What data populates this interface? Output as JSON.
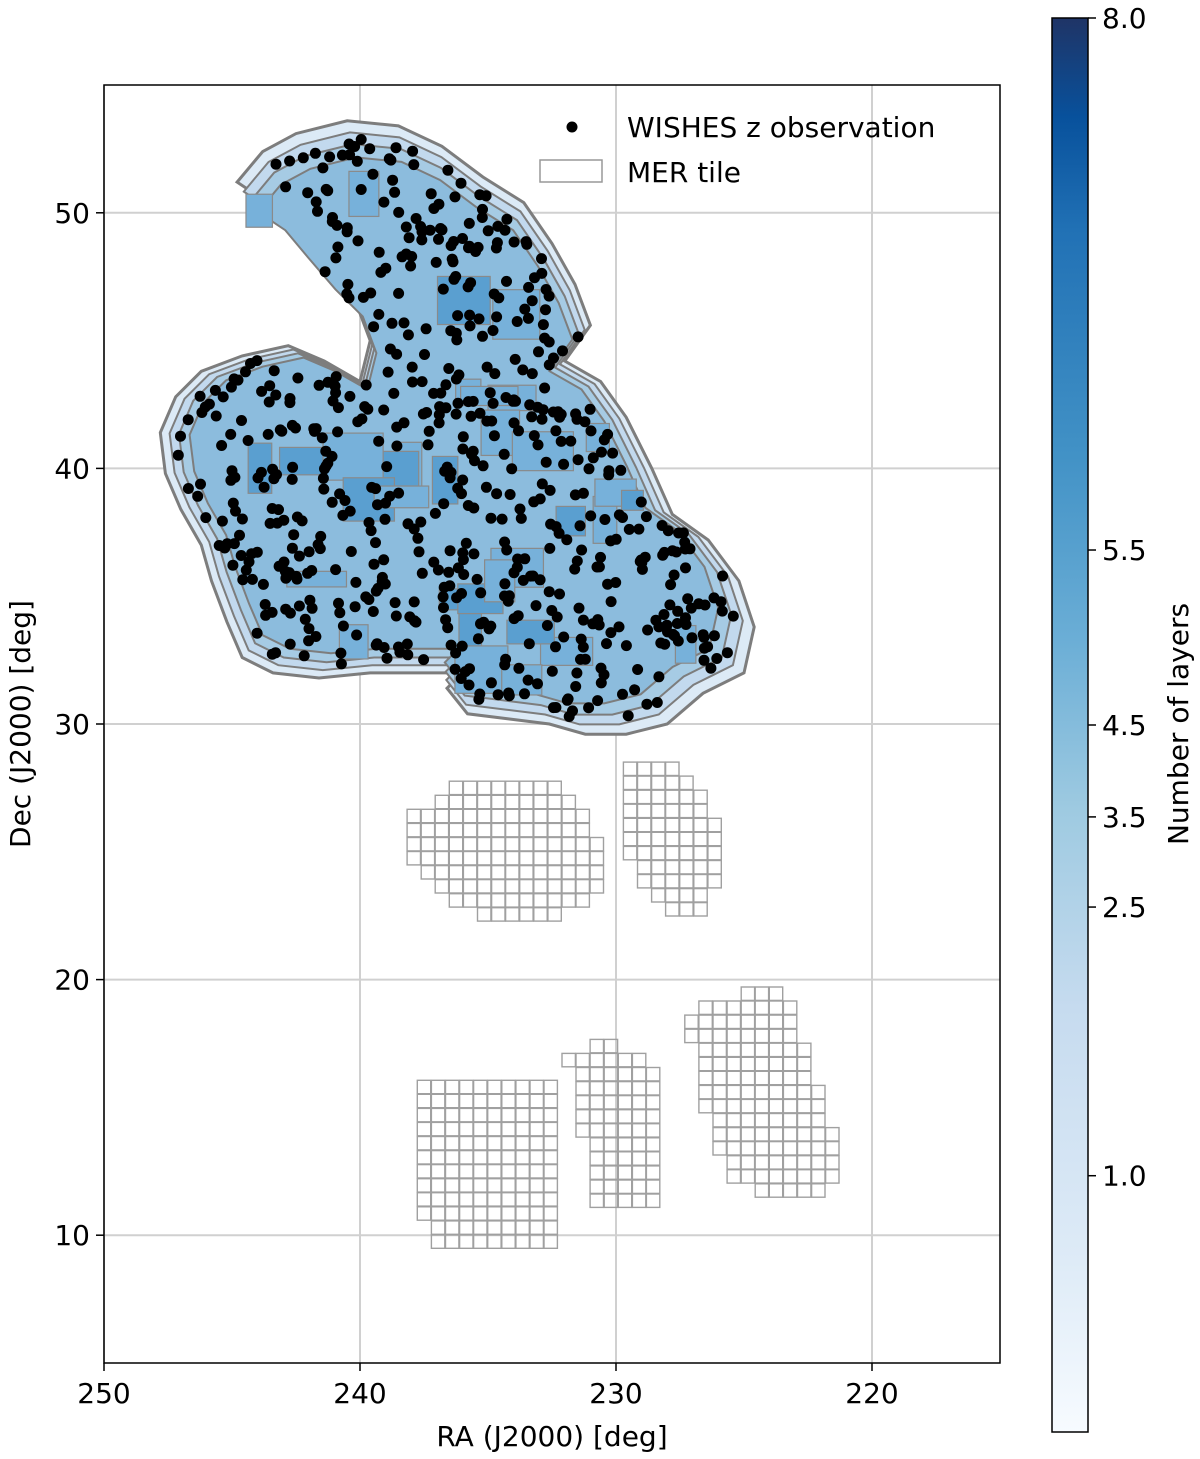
{
  "chart_data": {
    "type": "scatter",
    "xlabel": "RA (J2000) [deg]",
    "ylabel": "Dec (J2000) [deg]",
    "xlim": [
      250,
      215
    ],
    "ylim": [
      5,
      55
    ],
    "x_inverted": true,
    "xticks": [
      "250",
      "240",
      "230",
      "220"
    ],
    "yticks": [
      "10",
      "20",
      "30",
      "40",
      "50"
    ],
    "grid": true,
    "legend": {
      "placement": "top-right",
      "entries": [
        {
          "label": "WISHES z observation",
          "marker": "dot",
          "color": "#000000"
        },
        {
          "label": "MER tile",
          "marker": "square-outline",
          "color": "#999999"
        }
      ]
    },
    "colorbar": {
      "label": "Number of layers",
      "range": [
        0,
        8
      ],
      "ticks": [
        "1.0",
        "2.5",
        "3.5",
        "4.5",
        "5.5",
        "8.0"
      ],
      "colormap": "Blues"
    },
    "coverage_region": {
      "description": "layered coverage contour",
      "dec_range": [
        29.5,
        53.5
      ],
      "ra_range": [
        226.5,
        247.5
      ]
    },
    "observation_points_note": "approx. 600 pointings within coverage region",
    "mer_tile_groups": [
      {
        "ra_range": [
          223.5,
          233
        ],
        "dec_range": [
          9.5,
          20
        ],
        "note": "south block"
      },
      {
        "ra_range": [
          225,
          238
        ],
        "dec_range": [
          22,
          29
        ],
        "note": "middle block"
      }
    ]
  }
}
